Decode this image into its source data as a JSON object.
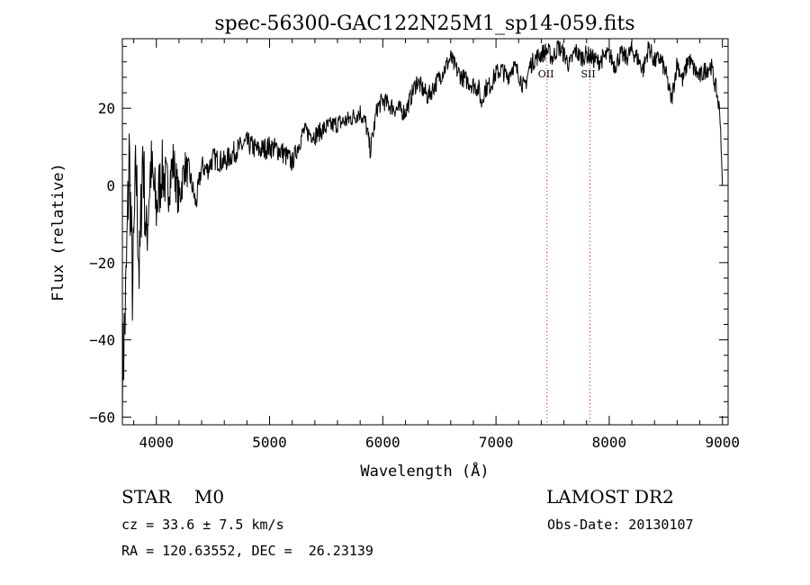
{
  "chart_data": {
    "type": "line",
    "title": "spec-56300-GAC122N25M1_sp14-059.fits",
    "xlabel": "Wavelength (Å)",
    "ylabel": "Flux (relative)",
    "xlim": [
      3700,
      9050
    ],
    "ylim": [
      -62,
      38
    ],
    "x_ticks": [
      4000,
      5000,
      6000,
      7000,
      8000,
      9000
    ],
    "x_tick_labels": [
      "4000",
      "5000",
      "6000",
      "7000",
      "8000",
      "9000"
    ],
    "y_ticks": [
      -60,
      -40,
      -20,
      0,
      20
    ],
    "y_tick_labels": [
      "−60",
      "−40",
      "−20",
      "0",
      "20"
    ],
    "grid": false,
    "series": [
      {
        "color": "#000000",
        "x": [
          3700,
          3730,
          3760,
          3790,
          3820,
          3850,
          3880,
          3910,
          3950,
          4000,
          4050,
          4100,
          4150,
          4200,
          4250,
          4300,
          4350,
          4400,
          4450,
          4500,
          4600,
          4700,
          4800,
          4900,
          5000,
          5100,
          5200,
          5300,
          5400,
          5500,
          5600,
          5700,
          5800,
          5850,
          5890,
          5950,
          6000,
          6100,
          6200,
          6300,
          6400,
          6500,
          6560,
          6600,
          6650,
          6700,
          6750,
          6800,
          6850,
          6870,
          6900,
          6950,
          7000,
          7050,
          7100,
          7150,
          7200,
          7250,
          7300,
          7350,
          7400,
          7450,
          7500,
          7550,
          7600,
          7650,
          7700,
          7750,
          7800,
          7850,
          7900,
          7950,
          8000,
          8050,
          8100,
          8150,
          8200,
          8250,
          8300,
          8350,
          8400,
          8450,
          8500,
          8550,
          8600,
          8650,
          8700,
          8750,
          8800,
          8850,
          8900,
          8950,
          8980,
          9000
        ],
        "y": [
          -50,
          -30,
          8,
          -28,
          5,
          -24,
          10,
          -15,
          5,
          -6,
          4,
          -1,
          6,
          -4,
          5,
          2,
          -5,
          5,
          4,
          7,
          6,
          9,
          11,
          9,
          10,
          9,
          6,
          14,
          13,
          15,
          16,
          17,
          19,
          16,
          9,
          20,
          22,
          20,
          19,
          27,
          23,
          28,
          31,
          33,
          30,
          28,
          27,
          26,
          25,
          21,
          25,
          26,
          29,
          30,
          28,
          31,
          29,
          25,
          31,
          33,
          34,
          35,
          33,
          36,
          34,
          31,
          35,
          33,
          34,
          33,
          32,
          33,
          34,
          31,
          34,
          33,
          35,
          33,
          30,
          36,
          32,
          33,
          29,
          22,
          32,
          27,
          33,
          30,
          28,
          30,
          31,
          24,
          18,
          0
        ]
      }
    ],
    "annotations": [
      {
        "label": "OII",
        "x": 7450,
        "line_color": "#e00000"
      },
      {
        "label": "SII",
        "x": 7830,
        "line_color": "#e00000"
      }
    ]
  },
  "footer": {
    "classification": "STAR    M0",
    "cz": "cz = 33.6 ± 7.5 km/s",
    "coords": "RA = 120.63552, DEC =  26.23139",
    "survey": "LAMOST DR2",
    "obs_date": "Obs-Date: 20130107"
  }
}
